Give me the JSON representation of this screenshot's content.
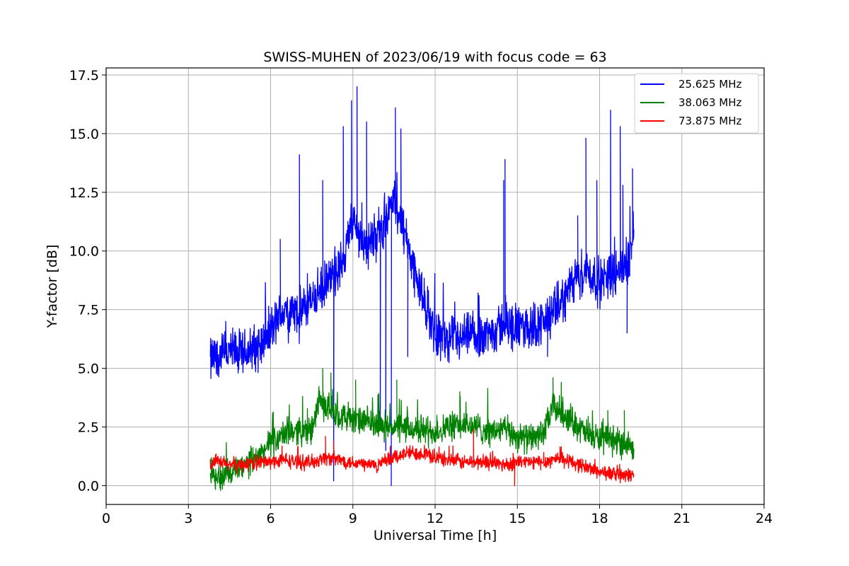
{
  "chart_data": {
    "type": "line",
    "title": "SWISS-MUHEN of 2023/06/19 with focus code = 63",
    "xlabel": "Universal Time [h]",
    "ylabel": "Y-factor [dB]",
    "xlim": [
      0,
      24
    ],
    "ylim": [
      -0.8,
      17.8
    ],
    "xticks": [
      0,
      3,
      6,
      9,
      12,
      15,
      18,
      21,
      24
    ],
    "xtick_labels": [
      "0",
      "3",
      "6",
      "9",
      "12",
      "15",
      "18",
      "21",
      "24"
    ],
    "yticks": [
      0.0,
      2.5,
      5.0,
      7.5,
      10.0,
      12.5,
      15.0,
      17.5
    ],
    "ytick_labels": [
      "0.0",
      "2.5",
      "5.0",
      "7.5",
      "10.0",
      "12.5",
      "15.0",
      "17.5"
    ],
    "grid": true,
    "legend_position": "top-right",
    "series": [
      {
        "name": "25.625 MHz",
        "color": "#0000ff",
        "x": [
          3.8,
          4.0,
          4.5,
          5.0,
          5.5,
          6.0,
          6.5,
          7.0,
          7.5,
          8.0,
          8.5,
          9.0,
          9.5,
          10.0,
          10.5,
          11.0,
          11.5,
          12.0,
          12.5,
          13.0,
          13.5,
          14.0,
          14.5,
          15.0,
          15.5,
          16.0,
          16.5,
          17.0,
          17.5,
          18.0,
          18.5,
          19.0,
          19.25
        ],
        "y": [
          5.3,
          5.5,
          5.7,
          5.6,
          5.9,
          6.6,
          7.5,
          7.3,
          7.9,
          8.5,
          9.2,
          11.2,
          10.2,
          10.9,
          12.2,
          10.3,
          8.1,
          6.6,
          6.1,
          6.2,
          6.4,
          6.5,
          6.9,
          6.6,
          6.8,
          7.0,
          7.6,
          8.6,
          9.2,
          8.6,
          9.1,
          9.4,
          10.8
        ],
        "spikes": [
          [
            6.35,
            10.5
          ],
          [
            7.05,
            14.1
          ],
          [
            7.9,
            13.0
          ],
          [
            8.3,
            0.2
          ],
          [
            8.65,
            15.3
          ],
          [
            8.95,
            16.4
          ],
          [
            9.15,
            17.0
          ],
          [
            9.5,
            15.5
          ],
          [
            10.0,
            2.5
          ],
          [
            10.2,
            1.5
          ],
          [
            10.4,
            0.0
          ],
          [
            10.55,
            16.1
          ],
          [
            10.75,
            15.2
          ],
          [
            11.0,
            5.5
          ],
          [
            13.6,
            8.1
          ],
          [
            14.55,
            13.9
          ],
          [
            14.5,
            13.0
          ],
          [
            16.1,
            5.5
          ],
          [
            17.2,
            11.5
          ],
          [
            17.5,
            14.8
          ],
          [
            17.9,
            13.0
          ],
          [
            18.4,
            16.0
          ],
          [
            18.75,
            15.3
          ],
          [
            18.85,
            12.8
          ],
          [
            19.0,
            6.5
          ],
          [
            19.2,
            13.5
          ]
        ]
      },
      {
        "name": "38.063 MHz",
        "color": "#008000",
        "x": [
          3.8,
          4.0,
          4.5,
          5.0,
          5.5,
          6.0,
          6.5,
          7.0,
          7.5,
          7.75,
          8.0,
          8.5,
          9.0,
          9.5,
          10.0,
          10.5,
          11.0,
          11.5,
          12.0,
          12.5,
          13.0,
          13.5,
          14.0,
          14.5,
          15.0,
          15.5,
          16.0,
          16.3,
          16.5,
          17.0,
          17.5,
          18.0,
          18.5,
          19.0,
          19.25
        ],
        "y": [
          0.8,
          0.3,
          0.5,
          0.8,
          1.2,
          1.8,
          2.2,
          2.4,
          2.3,
          3.6,
          3.4,
          3.0,
          2.8,
          2.7,
          2.6,
          2.5,
          2.4,
          2.4,
          2.3,
          2.5,
          2.6,
          2.5,
          2.3,
          2.4,
          2.1,
          2.0,
          2.3,
          3.4,
          3.2,
          2.8,
          2.2,
          2.0,
          1.9,
          1.8,
          1.7
        ],
        "spikes": [
          [
            7.9,
            5.0
          ],
          [
            8.2,
            4.8
          ],
          [
            9.1,
            4.5
          ],
          [
            10.6,
            4.5
          ],
          [
            12.9,
            4.0
          ],
          [
            16.3,
            4.6
          ],
          [
            16.6,
            4.4
          ],
          [
            18.3,
            3.2
          ],
          [
            18.9,
            3.2
          ]
        ]
      },
      {
        "name": "73.875 MHz",
        "color": "#ff0000",
        "x": [
          3.8,
          4.0,
          4.5,
          5.0,
          5.5,
          6.0,
          6.5,
          7.0,
          7.5,
          8.0,
          8.5,
          9.0,
          9.5,
          10.0,
          10.5,
          11.0,
          11.5,
          12.0,
          12.5,
          13.0,
          13.5,
          14.0,
          14.5,
          15.0,
          15.5,
          16.0,
          16.5,
          17.0,
          17.5,
          18.0,
          18.5,
          19.0,
          19.25
        ],
        "y": [
          0.9,
          1.0,
          0.9,
          0.9,
          1.0,
          1.0,
          1.1,
          1.0,
          1.0,
          1.2,
          1.1,
          1.0,
          0.9,
          0.9,
          1.2,
          1.4,
          1.4,
          1.2,
          1.1,
          1.0,
          1.0,
          1.0,
          0.9,
          1.0,
          1.0,
          1.0,
          1.2,
          1.0,
          0.8,
          0.6,
          0.5,
          0.4,
          0.5
        ],
        "spikes": [
          [
            8.0,
            2.1
          ],
          [
            8.3,
            1.9
          ],
          [
            13.4,
            2.4
          ],
          [
            14.9,
            0.0
          ],
          [
            15.6,
            0.7
          ]
        ]
      }
    ]
  }
}
